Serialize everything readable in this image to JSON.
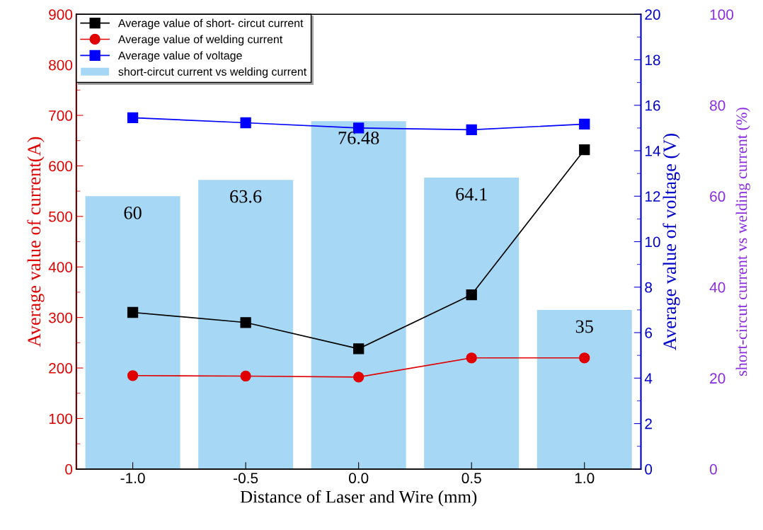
{
  "chart_data": {
    "type": "line",
    "xlabel": "Distance of Laser and Wire (mm)",
    "ylabel": "Average value of current(A)",
    "y2label": "Average value of voltage (V)",
    "y3label": "short-circut current vs welding current (%)",
    "x": [
      -1.0,
      -0.5,
      0.0,
      0.5,
      1.0
    ],
    "xlim": [
      -1.25,
      1.25
    ],
    "xticks": [
      {
        "value": -1.0,
        "label": "-1.0"
      },
      {
        "value": -0.5,
        "label": "-0.5"
      },
      {
        "value": 0.0,
        "label": "0.0"
      },
      {
        "value": 0.5,
        "label": "0.5"
      },
      {
        "value": 1.0,
        "label": "1.0"
      }
    ],
    "ylim": [
      0,
      900
    ],
    "yticks": [
      0,
      100,
      200,
      300,
      400,
      500,
      600,
      700,
      800,
      900
    ],
    "y2lim": [
      0,
      20
    ],
    "y2ticks": [
      0,
      2,
      4,
      6,
      8,
      10,
      12,
      14,
      16,
      18,
      20
    ],
    "y3lim": [
      0,
      100
    ],
    "y3ticks": [
      0,
      20,
      40,
      60,
      80,
      100
    ],
    "series": [
      {
        "name": "Average value of short- circut current",
        "color": "#000000",
        "marker": "square",
        "values": [
          310,
          290,
          238,
          345,
          632
        ]
      },
      {
        "name": "Average value of welding current",
        "color": "#e00000",
        "marker": "circle",
        "values": [
          185,
          184,
          182,
          220,
          220
        ]
      },
      {
        "name": "Average value of voltage",
        "axis": "y2",
        "color": "#0000ff",
        "marker": "square",
        "values": [
          15.45,
          15.23,
          15.0,
          14.92,
          15.17
        ]
      },
      {
        "name": "short-circut current vs welding current",
        "type": "bar",
        "axis": "y3",
        "color": "#a6d8f6",
        "values": [
          60,
          63.6,
          76.48,
          64.1,
          35
        ],
        "data_labels": true
      }
    ],
    "legend": "top left",
    "grid": false
  }
}
